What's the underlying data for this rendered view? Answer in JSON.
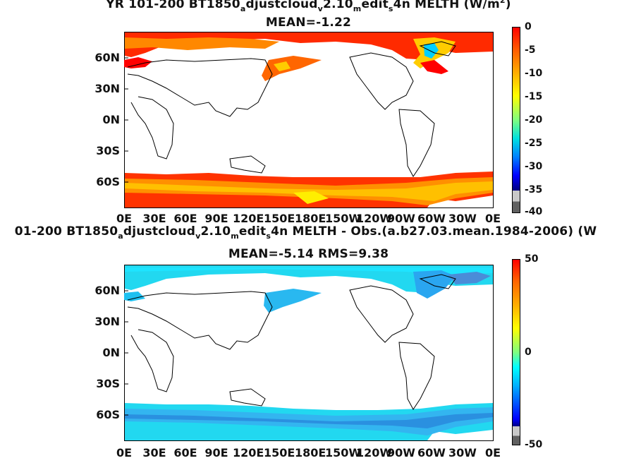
{
  "top": {
    "title_parts": [
      "YR 101-200 BT1850",
      "a",
      "djustcloud",
      "v",
      "2.10",
      "m",
      "edit",
      "s",
      "4n  MELTH (W/m",
      "2",
      ")"
    ],
    "subtitle": "MEAN=-1.22",
    "colorbar_labels": [
      "0",
      "-5",
      "-10",
      "-15",
      "-20",
      "-25",
      "-30",
      "-35",
      "-40"
    ],
    "colorbar_range": [
      -40,
      0
    ]
  },
  "bottom": {
    "title_parts": [
      "01-200 BT1850",
      "a",
      "djustcloud",
      "v",
      "2.10",
      "m",
      "edit",
      "s",
      "4n MELTH - Obs.(a.b27.03.mean.1984-2006) (W"
    ],
    "subtitle": "MEAN=-5.14 RMS=9.38",
    "colorbar_labels": [
      "50",
      "0",
      "-50"
    ],
    "colorbar_range": [
      -50,
      50
    ]
  },
  "lat_labels": [
    "60N",
    "30N",
    "0N",
    "30S",
    "60S"
  ],
  "lon_labels": [
    "0E",
    "30E",
    "60E",
    "90E",
    "120E",
    "150E",
    "180E",
    "150W",
    "120W",
    "90W",
    "60W",
    "30W",
    "0E"
  ],
  "colors": {
    "top_scale": [
      "#ff0000",
      "#ff6600",
      "#ffb000",
      "#ffff00",
      "#7fff7f",
      "#00e0e0",
      "#0080ff",
      "#0000ff",
      "#00007f",
      "#c8c8c8",
      "#606060"
    ],
    "bottom_scale_low": [
      "#606060",
      "#c8c8c8",
      "#00007f",
      "#0000ff",
      "#0060ff",
      "#00b0ff",
      "#00ffff",
      "#7fff7f"
    ],
    "bottom_scale_high": [
      "#7fff7f",
      "#ffff00",
      "#ffb000",
      "#ff6600",
      "#ff0000"
    ]
  }
}
